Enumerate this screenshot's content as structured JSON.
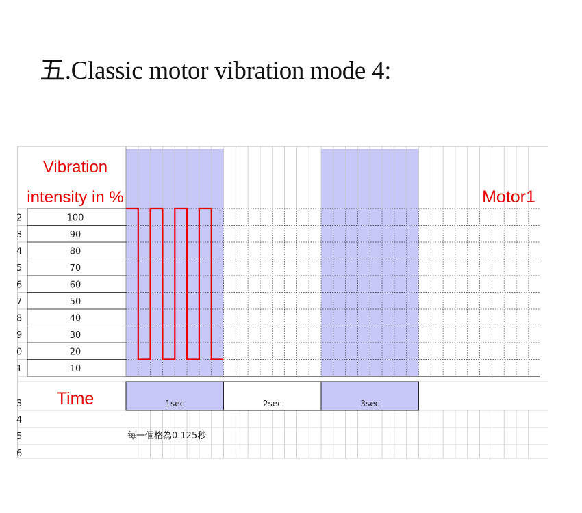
{
  "page": {
    "title_prefix": "五",
    "title": ".Classic motor vibration mode 4:"
  },
  "chart_data": {
    "type": "line",
    "ylabel_line1": "Vibration",
    "ylabel_line2": "intensity in  %",
    "y_values": [
      100,
      90,
      80,
      70,
      60,
      50,
      40,
      30,
      20,
      10
    ],
    "ylim": [
      10,
      100
    ],
    "series": [
      {
        "name": "Motor1",
        "color": "#e60000",
        "points": [
          [
            0,
            100
          ],
          [
            0.125,
            100
          ],
          [
            0.125,
            10
          ],
          [
            0.25,
            10
          ],
          [
            0.25,
            100
          ],
          [
            0.375,
            100
          ],
          [
            0.375,
            10
          ],
          [
            0.5,
            10
          ],
          [
            0.5,
            100
          ],
          [
            0.625,
            100
          ],
          [
            0.625,
            10
          ],
          [
            0.75,
            10
          ],
          [
            0.75,
            100
          ],
          [
            0.875,
            100
          ],
          [
            0.875,
            10
          ],
          [
            1.0,
            10
          ]
        ]
      }
    ],
    "time_label": "Time",
    "time_segments": [
      "1sec",
      "2sec",
      "3sec"
    ],
    "note": "每一個格為0.125秒",
    "row_numbers": [
      "2",
      "3",
      "4",
      "5",
      "6",
      "7",
      "8",
      "9",
      "0",
      "1",
      "",
      "3",
      "4",
      "5",
      "6"
    ],
    "colors": {
      "shade": "#c8c8f8",
      "trace": "#e60000",
      "label": "#e60000",
      "grid": "#c8c8c8"
    }
  }
}
